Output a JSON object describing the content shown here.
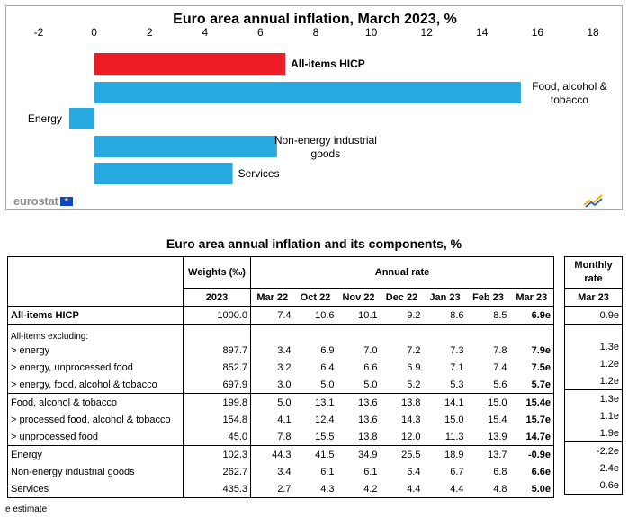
{
  "chart_data": {
    "type": "bar",
    "orientation": "horizontal",
    "title": "Euro area annual inflation, March 2023, %",
    "xlim": [
      -2,
      18
    ],
    "xticks": [
      "-2",
      "0",
      "2",
      "4",
      "6",
      "8",
      "10",
      "12",
      "14",
      "16",
      "18"
    ],
    "categories": [
      "All-items HICP",
      "Food, alcohol & tobacco",
      "Energy",
      "Non-energy industrial goods",
      "Services"
    ],
    "category_lines": [
      [
        "All-items HICP"
      ],
      [
        "Food, alcohol &",
        "tobacco"
      ],
      [
        "Energy"
      ],
      [
        "Non-energy industrial",
        "goods"
      ],
      [
        "Services"
      ]
    ],
    "values": [
      6.9,
      15.4,
      -0.9,
      6.6,
      5.0
    ],
    "colors": [
      "#ed1c24",
      "#28aae1",
      "#28aae1",
      "#28aae1",
      "#28aae1"
    ],
    "grid": false,
    "legend": "none"
  },
  "branding": {
    "logo_text": "eurostat",
    "flag_icon": "eu-flag-icon",
    "corner_icon": "statistics-mark-icon"
  },
  "table": {
    "title": "Euro area annual inflation and its components, %",
    "weights_header": "Weights (‰)",
    "annual_rate_header": "Annual rate",
    "monthly_header": "Monthly rate",
    "columns": [
      "2023",
      "Mar 22",
      "Oct 22",
      "Nov 22",
      "Dec 22",
      "Jan 23",
      "Feb 23",
      "Mar 23"
    ],
    "monthly_column": "Mar 23",
    "rows": [
      {
        "label": "All-items HICP",
        "weight": "1000.0",
        "values": [
          "7.4",
          "10.6",
          "10.1",
          "9.2",
          "8.6",
          "8.5",
          "6.9e"
        ],
        "monthly": "0.9e"
      },
      {
        "label": "All-items excluding:",
        "weight": "",
        "values": [
          "",
          "",
          "",
          "",
          "",
          "",
          ""
        ],
        "monthly": ""
      },
      {
        "label": "> energy",
        "weight": "897.7",
        "values": [
          "3.4",
          "6.9",
          "7.0",
          "7.2",
          "7.3",
          "7.8",
          "7.9e"
        ],
        "monthly": "1.3e"
      },
      {
        "label": "> energy, unprocessed food",
        "weight": "852.7",
        "values": [
          "3.2",
          "6.4",
          "6.6",
          "6.9",
          "7.1",
          "7.4",
          "7.5e"
        ],
        "monthly": "1.2e"
      },
      {
        "label": "> energy, food, alcohol & tobacco",
        "weight": "697.9",
        "values": [
          "3.0",
          "5.0",
          "5.0",
          "5.2",
          "5.3",
          "5.6",
          "5.7e"
        ],
        "monthly": "1.2e"
      },
      {
        "label": "Food, alcohol & tobacco",
        "weight": "199.8",
        "values": [
          "5.0",
          "13.1",
          "13.6",
          "13.8",
          "14.1",
          "15.0",
          "15.4e"
        ],
        "monthly": "1.3e"
      },
      {
        "label": "> processed food, alcohol & tobacco",
        "weight": "154.8",
        "values": [
          "4.1",
          "12.4",
          "13.6",
          "14.3",
          "15.0",
          "15.4",
          "15.7e"
        ],
        "monthly": "1.1e"
      },
      {
        "label": "> unprocessed food",
        "weight": "45.0",
        "values": [
          "7.8",
          "15.5",
          "13.8",
          "12.0",
          "11.3",
          "13.9",
          "14.7e"
        ],
        "monthly": "1.9e"
      },
      {
        "label": "Energy",
        "weight": "102.3",
        "values": [
          "44.3",
          "41.5",
          "34.9",
          "25.5",
          "18.9",
          "13.7",
          "-0.9e"
        ],
        "monthly": "-2.2e"
      },
      {
        "label": "Non-energy industrial goods",
        "weight": "262.7",
        "values": [
          "3.4",
          "6.1",
          "6.1",
          "6.4",
          "6.7",
          "6.8",
          "6.6e"
        ],
        "monthly": "2.4e"
      },
      {
        "label": "Services",
        "weight": "435.3",
        "values": [
          "2.7",
          "4.3",
          "4.2",
          "4.4",
          "4.4",
          "4.8",
          "5.0e"
        ],
        "monthly": "0.6e"
      }
    ],
    "footnote": "e estimate"
  }
}
